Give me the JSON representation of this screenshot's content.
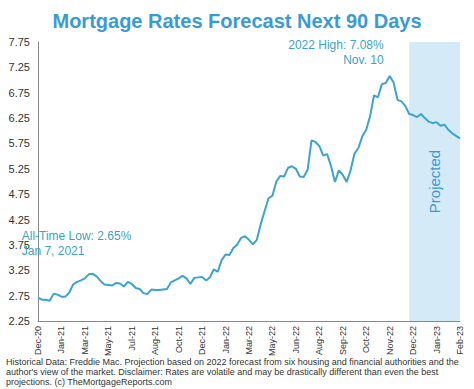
{
  "chart_data": {
    "type": "line",
    "title": "Mortgage Rates Forecast Next 90 Days",
    "categories": [
      "Dec-20",
      null,
      null,
      null,
      null,
      null,
      "Jan-21",
      null,
      null,
      null,
      null,
      null,
      "Mar-21",
      null,
      null,
      null,
      null,
      null,
      "May-21",
      null,
      null,
      null,
      null,
      null,
      "Jul-21",
      null,
      null,
      null,
      null,
      null,
      "Aug-21",
      null,
      null,
      null,
      null,
      null,
      "Oct-21",
      null,
      null,
      null,
      null,
      null,
      "Dec-21",
      null,
      null,
      null,
      null,
      null,
      "Jan-22",
      null,
      null,
      null,
      null,
      null,
      "Mar-22",
      null,
      null,
      null,
      null,
      null,
      "May-22",
      null,
      null,
      null,
      null,
      null,
      "Jun-22",
      null,
      null,
      null,
      null,
      null,
      "Aug-22",
      null,
      null,
      null,
      null,
      null,
      "Sep-22",
      null,
      null,
      null,
      null,
      null,
      "Oct-22",
      null,
      null,
      null,
      null,
      null,
      "Nov-22",
      null,
      null,
      null,
      null,
      null,
      "Dec-22",
      null,
      null,
      null,
      null,
      null,
      "Jan-23",
      null,
      null,
      null,
      null,
      null,
      "Feb-23"
    ],
    "values": [
      2.71,
      2.67,
      2.67,
      2.65,
      2.79,
      2.77,
      2.73,
      2.73,
      2.81,
      2.97,
      3.02,
      3.05,
      3.09,
      3.17,
      3.18,
      3.13,
      3.04,
      2.97,
      2.96,
      2.95,
      3.0,
      2.99,
      2.93,
      3.02,
      2.98,
      2.9,
      2.88,
      2.8,
      2.78,
      2.87,
      2.86,
      2.86,
      2.87,
      2.88,
      3.01,
      3.05,
      3.09,
      3.14,
      3.09,
      2.98,
      3.1,
      3.11,
      3.12,
      3.05,
      3.11,
      3.27,
      3.22,
      3.45,
      3.56,
      3.55,
      3.69,
      3.76,
      3.89,
      3.92,
      3.85,
      3.76,
      3.85,
      4.16,
      4.42,
      4.67,
      4.72,
      5.0,
      5.11,
      5.1,
      5.27,
      5.3,
      5.25,
      5.1,
      5.09,
      5.23,
      5.81,
      5.78,
      5.7,
      5.51,
      5.54,
      5.3,
      4.99,
      5.22,
      5.13,
      4.99,
      5.22,
      5.55,
      5.66,
      5.89,
      6.02,
      6.29,
      6.7,
      6.66,
      6.92,
      6.94,
      7.08,
      6.95,
      6.61,
      6.58,
      6.49,
      6.33,
      6.31,
      6.27,
      6.33,
      6.25,
      6.18,
      6.15,
      6.17,
      6.1,
      6.12,
      6.02,
      5.95,
      5.9,
      5.85
    ],
    "color": "#3ba3d0",
    "ylim": [
      2.25,
      7.75
    ],
    "yticks": [
      2.25,
      2.75,
      3.25,
      3.75,
      4.25,
      4.75,
      5.25,
      5.75,
      6.25,
      6.75,
      7.25,
      7.75
    ],
    "grid": false,
    "annotations": [
      {
        "text": "2022 High: 7.08%",
        "subtext": "Nov. 10",
        "x": 90,
        "y": 7.08
      },
      {
        "text": "All-Time Low: 2.65%",
        "subtext": "Jan 7, 2021",
        "x": 3,
        "y": 2.65
      }
    ],
    "shaded_region": {
      "text": "Projected",
      "x": [
        95,
        108
      ],
      "color": "#d4eaf7"
    },
    "footnote": "Historical Data: Freddie Mac. Projection based on 2022 forecast from six housing and financial authorities and the author's view of the market. Disclaimer: Rates are volatile and may be drastically different than even the best projections. (c) TheMortgageReports.com"
  }
}
